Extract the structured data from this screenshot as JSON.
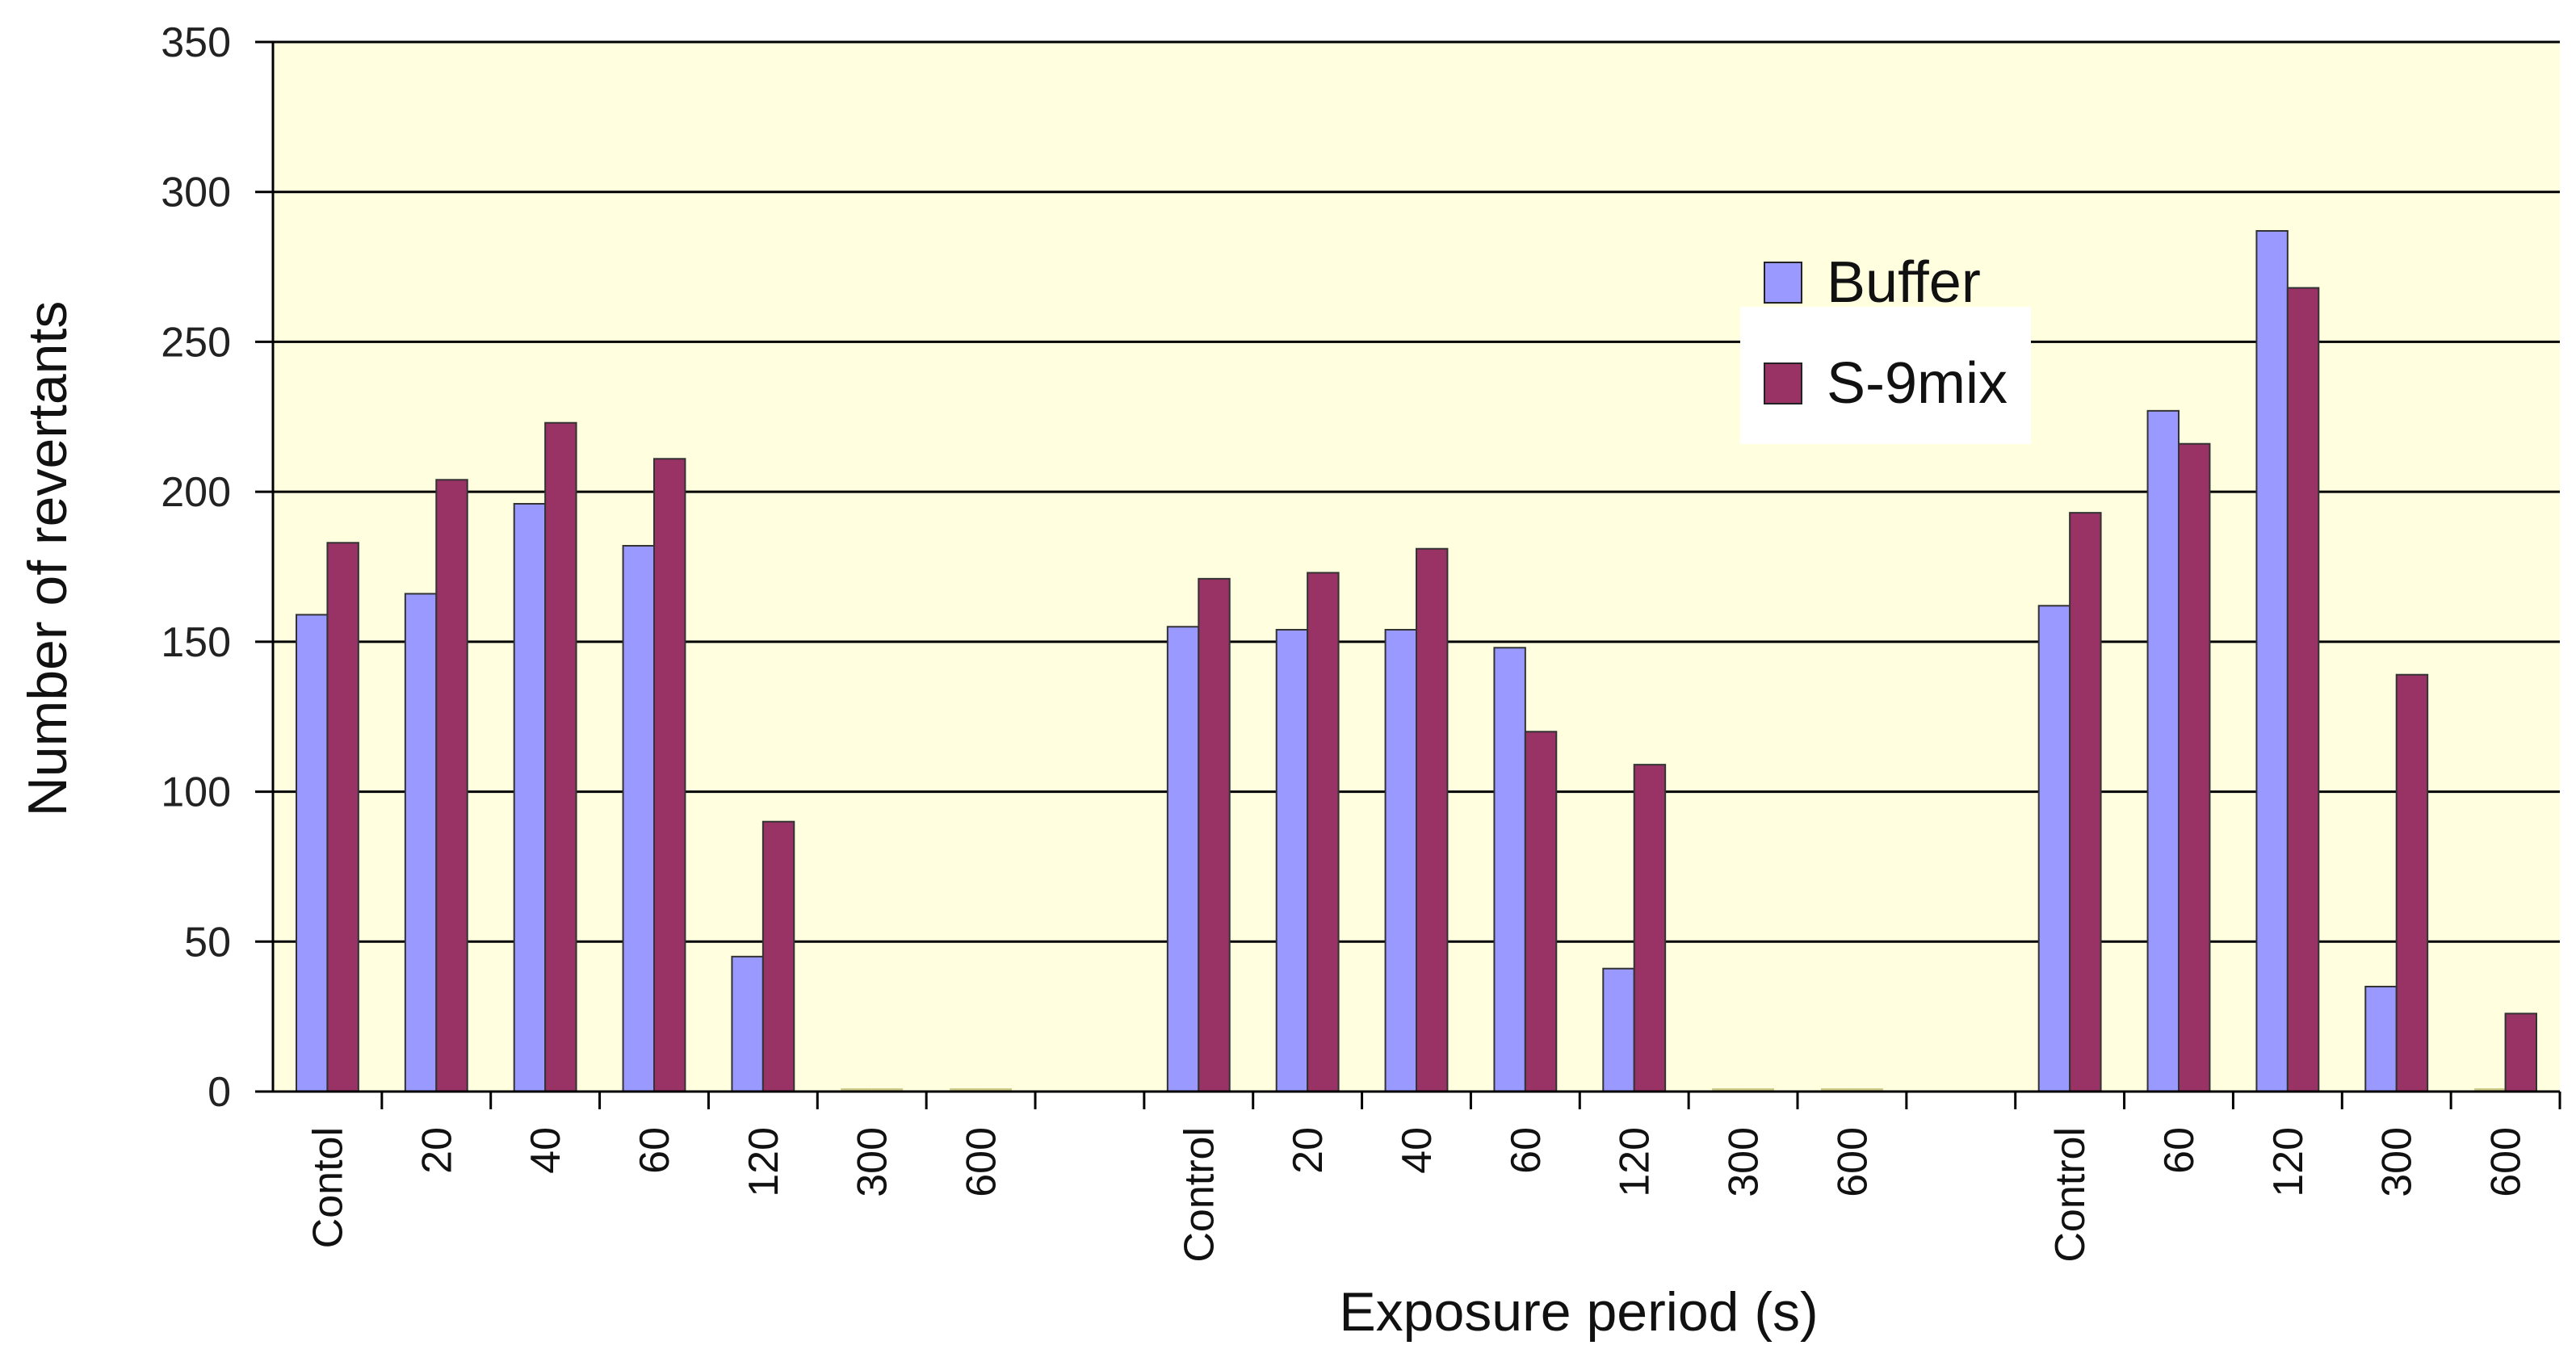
{
  "chart_data": {
    "type": "bar",
    "title": "",
    "xlabel": "Exposure period (s)",
    "ylabel": "Number of revertants",
    "ylim": [
      0,
      350
    ],
    "yticks": [
      0,
      50,
      100,
      150,
      200,
      250,
      300,
      350
    ],
    "grid": true,
    "legend_position": "top-right",
    "colors": {
      "plot_bg": "#ffffe0",
      "buffer": "#9999ff",
      "s9mix": "#993366",
      "grid": "#000000"
    },
    "categories": [
      "Contol",
      "20",
      "40",
      "60",
      "120",
      "300",
      "600",
      "",
      "Control",
      "20",
      "40",
      "60",
      "120",
      "300",
      "600",
      "",
      "Control",
      "60",
      "120",
      "300",
      "600"
    ],
    "series": [
      {
        "name": "Buffer",
        "values": [
          159,
          166,
          196,
          182,
          45,
          0,
          0,
          null,
          155,
          154,
          154,
          148,
          41,
          0,
          0,
          null,
          162,
          227,
          287,
          35,
          0
        ]
      },
      {
        "name": "S-9mix",
        "values": [
          183,
          204,
          223,
          211,
          90,
          0,
          0,
          null,
          171,
          173,
          181,
          120,
          109,
          0,
          0,
          null,
          193,
          216,
          268,
          139,
          26
        ]
      }
    ]
  }
}
